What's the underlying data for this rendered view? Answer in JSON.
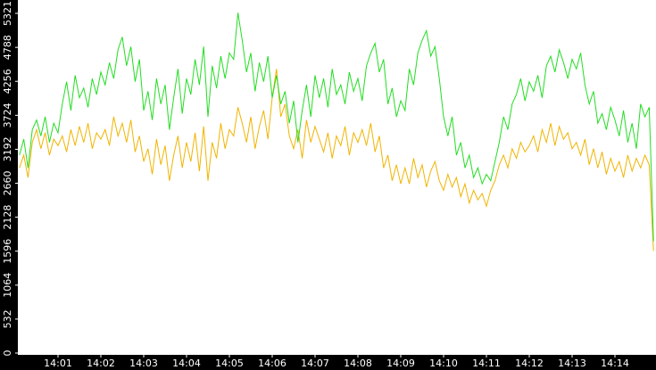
{
  "chart_data": {
    "type": "line",
    "categories": [
      null,
      null,
      null,
      null,
      null,
      null,
      null,
      null,
      null,
      "14:01",
      null,
      null,
      null,
      null,
      null,
      null,
      null,
      null,
      null,
      "14:02",
      null,
      null,
      null,
      null,
      null,
      null,
      null,
      null,
      null,
      "14:03",
      null,
      null,
      null,
      null,
      null,
      null,
      null,
      null,
      null,
      "14:04",
      null,
      null,
      null,
      null,
      null,
      null,
      null,
      null,
      null,
      "14:05",
      null,
      null,
      null,
      null,
      null,
      null,
      null,
      null,
      null,
      "14:06",
      null,
      null,
      null,
      null,
      null,
      null,
      null,
      null,
      null,
      "14:07",
      null,
      null,
      null,
      null,
      null,
      null,
      null,
      null,
      null,
      "14:08",
      null,
      null,
      null,
      null,
      null,
      null,
      null,
      null,
      null,
      "14:09",
      null,
      null,
      null,
      null,
      null,
      null,
      null,
      null,
      null,
      "14:10",
      null,
      null,
      null,
      null,
      null,
      null,
      null,
      null,
      null,
      "14:11",
      null,
      null,
      null,
      null,
      null,
      null,
      null,
      null,
      null,
      "14:12",
      null,
      null,
      null,
      null,
      null,
      null,
      null,
      null,
      null,
      "14:13",
      null,
      null,
      null,
      null,
      null,
      null,
      null,
      null,
      null,
      "14:14",
      null,
      null,
      null,
      null,
      null,
      null,
      null,
      null,
      null
    ],
    "series": [
      {
        "color": "#22dd22",
        "values": [
          3100,
          3350,
          2900,
          3500,
          3650,
          3400,
          3700,
          3300,
          3600,
          3450,
          3900,
          4250,
          3800,
          4350,
          4000,
          4150,
          3850,
          4300,
          4050,
          4400,
          4200,
          4550,
          4300,
          4750,
          4950,
          4500,
          4800,
          4250,
          4600,
          3800,
          4100,
          3650,
          4300,
          3900,
          4200,
          3500,
          4000,
          4450,
          3750,
          4300,
          4050,
          4600,
          4200,
          4800,
          3700,
          4500,
          4150,
          4650,
          4300,
          4700,
          4600,
          5330,
          4900,
          4400,
          4700,
          4100,
          4550,
          4250,
          4650,
          4000,
          4350,
          3900,
          4100,
          3600,
          3950,
          3300,
          3800,
          4200,
          3700,
          4350,
          4000,
          4300,
          3850,
          4450,
          4050,
          4200,
          3900,
          4400,
          4100,
          4300,
          3950,
          4500,
          4700,
          4850,
          4400,
          4600,
          3900,
          4150,
          3700,
          3950,
          3800,
          4450,
          4200,
          4700,
          4900,
          5050,
          4650,
          4800,
          4300,
          3700,
          3400,
          3700,
          3100,
          3300,
          2900,
          3100,
          2750,
          2900,
          2650,
          2800,
          2700,
          3000,
          3300,
          3700,
          3500,
          3900,
          4050,
          4300,
          3950,
          4250,
          4100,
          4350,
          4000,
          4500,
          4650,
          4400,
          4750,
          4550,
          4300,
          4600,
          4450,
          4700,
          4200,
          3900,
          4100,
          3600,
          3750,
          3500,
          3850,
          3650,
          3400,
          3800,
          3300,
          3600,
          3200,
          3900,
          3700,
          3850,
          1750
        ]
      },
      {
        "color": "#f0b400",
        "values": [
          2900,
          3100,
          2750,
          3300,
          3500,
          3200,
          3450,
          3100,
          3350,
          3250,
          3400,
          3150,
          3500,
          3250,
          3550,
          3300,
          3600,
          3200,
          3450,
          3350,
          3500,
          3250,
          3700,
          3400,
          3600,
          3300,
          3650,
          3150,
          3400,
          3000,
          3200,
          2800,
          3350,
          2950,
          3250,
          2700,
          3100,
          3400,
          2900,
          3300,
          3000,
          3450,
          2850,
          3550,
          2700,
          3300,
          3050,
          3600,
          3200,
          3500,
          3400,
          3850,
          3600,
          3300,
          3700,
          3200,
          3550,
          3800,
          3350,
          4000,
          4450,
          3700,
          3900,
          3400,
          3200,
          3500,
          3050,
          3650,
          3300,
          3550,
          3350,
          3150,
          3450,
          3050,
          3400,
          3250,
          3550,
          3100,
          3450,
          3300,
          3500,
          3250,
          3600,
          3150,
          3400,
          2900,
          3100,
          2700,
          2950,
          2650,
          2900,
          2650,
          3050,
          2750,
          2950,
          2600,
          2850,
          3000,
          2700,
          2550,
          2800,
          2600,
          2750,
          2450,
          2650,
          2350,
          2550,
          2400,
          2500,
          2300,
          2550,
          2700,
          2950,
          3100,
          2900,
          3200,
          3050,
          3300,
          3150,
          3250,
          3400,
          3150,
          3500,
          3300,
          3600,
          3250,
          3550,
          3350,
          3450,
          3200,
          3300,
          3100,
          3350,
          2950,
          3200,
          2900,
          3150,
          2800,
          3050,
          2850,
          3000,
          2750,
          3100,
          2850,
          3050,
          2900,
          3100,
          2950,
          1600
        ]
      }
    ],
    "ylim": [
      0,
      5530
    ],
    "yticks": [
      0,
      532,
      1064,
      1596,
      2128,
      2660,
      3192,
      3724,
      4256,
      4788,
      5321
    ]
  }
}
